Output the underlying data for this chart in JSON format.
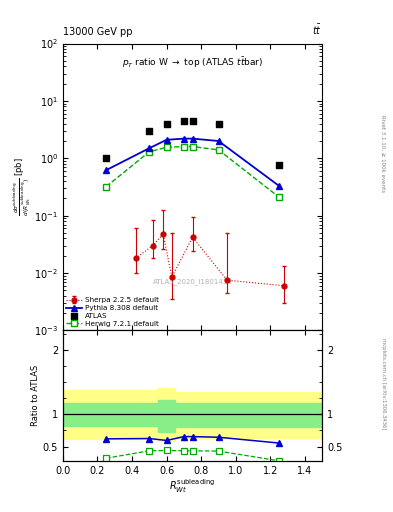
{
  "atlas_x": [
    0.25,
    0.5,
    0.6,
    0.7,
    0.75,
    0.9,
    1.25
  ],
  "atlas_y": [
    1.0,
    3.0,
    4.0,
    4.5,
    4.5,
    4.0,
    0.75
  ],
  "herwig_x": [
    0.25,
    0.5,
    0.6,
    0.7,
    0.75,
    0.9,
    1.25
  ],
  "herwig_y": [
    0.32,
    1.3,
    1.55,
    1.6,
    1.6,
    1.4,
    0.21
  ],
  "herwig_color": "#00aa00",
  "pythia_x": [
    0.25,
    0.5,
    0.6,
    0.7,
    0.75,
    0.9,
    1.25
  ],
  "pythia_y": [
    0.62,
    1.5,
    2.1,
    2.2,
    2.2,
    2.0,
    0.33
  ],
  "pythia_color": "#0000cc",
  "sherpa_x": [
    0.42,
    0.52,
    0.58,
    0.63,
    0.75,
    0.95,
    1.28
  ],
  "sherpa_y": [
    0.018,
    0.03,
    0.048,
    0.0085,
    0.042,
    0.0075,
    0.006
  ],
  "sherpa_yerr_lo": [
    0.008,
    0.012,
    0.022,
    0.005,
    0.018,
    0.003,
    0.003
  ],
  "sherpa_yerr_hi": [
    0.042,
    0.055,
    0.075,
    0.042,
    0.052,
    0.042,
    0.007
  ],
  "sherpa_color": "#cc0000",
  "herwig_ratio_x": [
    0.25,
    0.5,
    0.6,
    0.7,
    0.75,
    0.9,
    1.25
  ],
  "herwig_ratio_y": [
    0.32,
    0.435,
    0.44,
    0.435,
    0.435,
    0.43,
    0.28
  ],
  "pythia_ratio_x": [
    0.25,
    0.5,
    0.6,
    0.7,
    0.75,
    0.9,
    1.25
  ],
  "pythia_ratio_y": [
    0.62,
    0.625,
    0.595,
    0.655,
    0.655,
    0.645,
    0.555
  ],
  "band_edges": [
    0.0,
    0.45,
    0.55,
    0.65,
    0.75,
    0.85,
    1.5
  ],
  "band_green_lo": [
    0.82,
    0.82,
    0.73,
    0.8,
    0.8,
    0.8,
    0.8
  ],
  "band_green_hi": [
    1.18,
    1.18,
    1.22,
    1.17,
    1.17,
    1.17,
    1.17
  ],
  "band_yellow_lo": [
    0.62,
    0.62,
    0.59,
    0.64,
    0.64,
    0.64,
    0.64
  ],
  "band_yellow_hi": [
    1.38,
    1.38,
    1.4,
    1.35,
    1.35,
    1.35,
    1.35
  ],
  "xlim": [
    0,
    1.5
  ],
  "ylim_main": [
    0.001,
    100
  ],
  "ylim_ratio": [
    0.28,
    2.3
  ]
}
